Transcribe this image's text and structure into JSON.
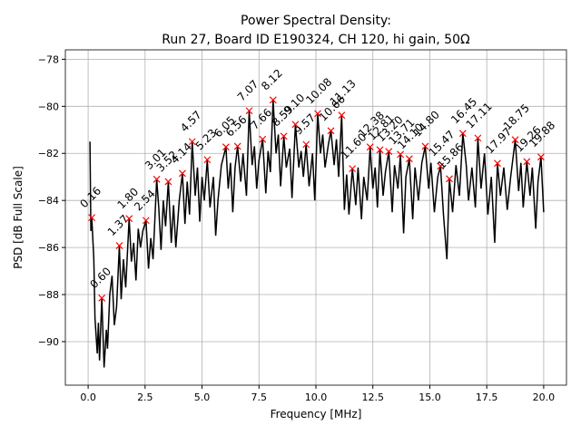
{
  "chart_data": {
    "type": "line",
    "title": "Power Spectral Density:",
    "subtitle": "Run 27, Board ID E190324, CH 120, hi gain, 50Ω",
    "x_label": "Frequency [MHz]",
    "y_label": "PSD [dB Full Scale]",
    "xlim": [
      -1,
      21
    ],
    "ylim": [
      -91.85,
      -77.6
    ],
    "xticks": [
      {
        "value": 0,
        "label": "0.0"
      },
      {
        "value": 2.5,
        "label": "2.5"
      },
      {
        "value": 5,
        "label": "5.0"
      },
      {
        "value": 7.5,
        "label": "7.5"
      },
      {
        "value": 10,
        "label": "10.0"
      },
      {
        "value": 12.5,
        "label": "12.5"
      },
      {
        "value": 15,
        "label": "15.0"
      },
      {
        "value": 17.5,
        "label": "17.5"
      },
      {
        "value": 20,
        "label": "20.0"
      }
    ],
    "yticks": [
      {
        "value": -90,
        "label": "−90"
      },
      {
        "value": -88,
        "label": "−88"
      },
      {
        "value": -86,
        "label": "−86"
      },
      {
        "value": -84,
        "label": "−84"
      },
      {
        "value": -82,
        "label": "−82"
      },
      {
        "value": -80,
        "label": "−80"
      },
      {
        "value": -78,
        "label": "−78"
      }
    ],
    "grid": true,
    "series": [
      {
        "color": "#000000",
        "x": [
          0.08,
          0.12,
          0.16,
          0.25,
          0.3,
          0.4,
          0.45,
          0.5,
          0.6,
          0.7,
          0.8,
          0.85,
          0.95,
          1.05,
          1.15,
          1.25,
          1.37,
          1.45,
          1.55,
          1.65,
          1.8,
          1.9,
          2.0,
          2.1,
          2.2,
          2.3,
          2.4,
          2.54,
          2.65,
          2.75,
          2.85,
          3.01,
          3.1,
          3.2,
          3.3,
          3.4,
          3.52,
          3.65,
          3.75,
          3.85,
          4.0,
          4.14,
          4.25,
          4.35,
          4.45,
          4.57,
          4.7,
          4.8,
          4.9,
          5.0,
          5.1,
          5.23,
          5.35,
          5.5,
          5.6,
          5.7,
          5.85,
          6.05,
          6.15,
          6.25,
          6.35,
          6.45,
          6.56,
          6.7,
          6.8,
          6.95,
          7.07,
          7.2,
          7.3,
          7.4,
          7.5,
          7.66,
          7.8,
          7.9,
          8.0,
          8.12,
          8.25,
          8.35,
          8.45,
          8.59,
          8.7,
          8.85,
          8.95,
          9.1,
          9.25,
          9.35,
          9.45,
          9.57,
          9.7,
          9.85,
          9.95,
          10.08,
          10.2,
          10.3,
          10.4,
          10.55,
          10.66,
          10.8,
          10.9,
          11.0,
          11.13,
          11.25,
          11.35,
          11.45,
          11.6,
          11.75,
          11.85,
          12.0,
          12.1,
          12.25,
          12.38,
          12.5,
          12.6,
          12.7,
          12.81,
          12.95,
          13.05,
          13.2,
          13.35,
          13.45,
          13.6,
          13.71,
          13.85,
          13.95,
          14.1,
          14.25,
          14.35,
          14.5,
          14.65,
          14.8,
          14.95,
          15.05,
          15.2,
          15.35,
          15.47,
          15.6,
          15.75,
          15.86,
          16.0,
          16.15,
          16.3,
          16.45,
          16.6,
          16.7,
          16.85,
          17.0,
          17.11,
          17.25,
          17.4,
          17.55,
          17.7,
          17.85,
          17.97,
          18.1,
          18.25,
          18.4,
          18.55,
          18.75,
          18.9,
          19.0,
          19.1,
          19.26,
          19.4,
          19.5,
          19.65,
          19.75,
          19.88,
          20.0
        ],
        "values": [
          -81.5,
          -85.3,
          -84.73,
          -86.5,
          -89,
          -90.5,
          -89.2,
          -90.8,
          -88.15,
          -91.1,
          -89.5,
          -90.3,
          -88,
          -87.2,
          -89.3,
          -88.5,
          -85.92,
          -88.2,
          -86.5,
          -87.7,
          -84.77,
          -86.6,
          -85.8,
          -87.4,
          -85.2,
          -86.0,
          -85.3,
          -84.85,
          -86.9,
          -85.6,
          -86.5,
          -83.1,
          -84.3,
          -86.1,
          -84.0,
          -85.1,
          -83.2,
          -85.8,
          -84.2,
          -86.0,
          -84.0,
          -82.85,
          -85.0,
          -83.2,
          -84.6,
          -81.5,
          -83.8,
          -82.6,
          -84.9,
          -83.0,
          -84.0,
          -82.27,
          -84.3,
          -83.0,
          -85.5,
          -84.0,
          -82.5,
          -81.73,
          -83.5,
          -82.4,
          -84.5,
          -82.6,
          -81.7,
          -83.2,
          -82.0,
          -83.8,
          -80.19,
          -82.5,
          -81.7,
          -83.5,
          -82.3,
          -81.4,
          -83.7,
          -81.9,
          -82.8,
          -79.73,
          -82.0,
          -81.2,
          -83.4,
          -81.27,
          -82.6,
          -81.8,
          -83.9,
          -80.77,
          -82.6,
          -81.9,
          -83.0,
          -81.62,
          -83.4,
          -82.0,
          -84.0,
          -80.31,
          -82.0,
          -81.2,
          -82.6,
          -81.6,
          -81.04,
          -82.5,
          -81.4,
          -83.0,
          -80.38,
          -84.4,
          -82.9,
          -84.6,
          -82.65,
          -84.2,
          -82.6,
          -84.8,
          -83.0,
          -84.0,
          -81.73,
          -83.5,
          -82.6,
          -84.3,
          -81.85,
          -83.8,
          -82.8,
          -81.92,
          -84.5,
          -82.5,
          -83.5,
          -82.04,
          -85.4,
          -83.0,
          -82.23,
          -84.8,
          -82.6,
          -84.0,
          -82.4,
          -81.7,
          -83.5,
          -82.4,
          -84.5,
          -83.0,
          -82.54,
          -84.6,
          -86.5,
          -83.08,
          -84.5,
          -82.5,
          -83.8,
          -81.15,
          -82.5,
          -84.0,
          -82.6,
          -84.3,
          -81.35,
          -83.5,
          -82.0,
          -84.6,
          -83.0,
          -85.8,
          -82.42,
          -83.8,
          -82.6,
          -84.4,
          -83.0,
          -81.42,
          -83.6,
          -82.4,
          -84.3,
          -82.35,
          -83.8,
          -82.6,
          -85.2,
          -83.2,
          -82.15,
          -84.5
        ]
      },
      {
        "color": "#ff0000",
        "marker": "x",
        "x": [
          0.16,
          0.6,
          1.37,
          1.8,
          2.54,
          3.01,
          3.52,
          4.14,
          4.57,
          5.23,
          6.05,
          6.56,
          7.07,
          7.66,
          8.12,
          8.59,
          9.1,
          9.57,
          10.08,
          10.66,
          11.13,
          11.6,
          12.38,
          12.81,
          13.2,
          13.71,
          14.1,
          14.8,
          15.47,
          15.86,
          16.45,
          17.11,
          17.97,
          18.75,
          19.26,
          19.88
        ],
        "values": [
          -84.73,
          -88.15,
          -85.92,
          -84.77,
          -84.85,
          -83.1,
          -83.2,
          -82.85,
          -81.5,
          -82.27,
          -81.73,
          -81.7,
          -80.19,
          -81.4,
          -79.73,
          -81.27,
          -80.77,
          -81.62,
          -80.31,
          -81.04,
          -80.38,
          -82.65,
          -81.73,
          -81.85,
          -81.92,
          -82.04,
          -82.23,
          -81.7,
          -82.54,
          -83.08,
          -81.15,
          -81.35,
          -82.42,
          -81.42,
          -82.35,
          -82.15
        ],
        "value_labels": [
          "0.16",
          "0.60",
          "1.37",
          "1.80",
          "2.54",
          "3.01",
          "3.52",
          "4.14",
          "4.57",
          "5.23",
          "6.05",
          "6.56",
          "7.07",
          "7.66",
          "8.12",
          "8.59",
          "9.10",
          "9.57",
          "10.08",
          "10.66",
          "11.13",
          "11.60",
          "12.38",
          "12.81",
          "13.20",
          "13.71",
          "14.10",
          "14.80",
          "15.47",
          "15.86",
          "16.45",
          "17.11",
          "17.97",
          "18.75",
          "19.26",
          "19.88"
        ]
      }
    ]
  }
}
